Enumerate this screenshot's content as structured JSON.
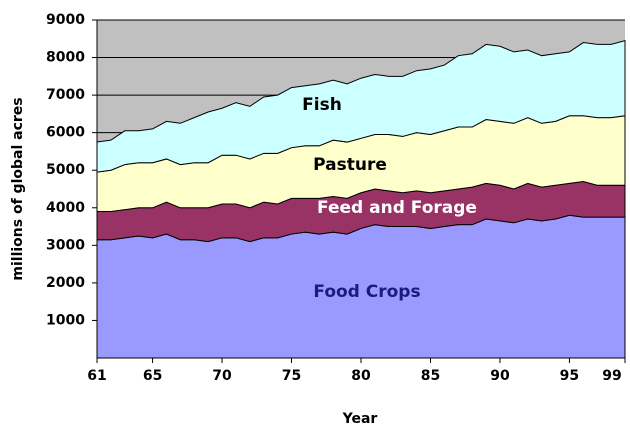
{
  "chart_data": {
    "type": "stacked_area",
    "x_label": "Year",
    "y_label": "millions of global acres",
    "x": [
      61,
      62,
      63,
      64,
      65,
      66,
      67,
      68,
      69,
      70,
      71,
      72,
      73,
      74,
      75,
      76,
      77,
      78,
      79,
      80,
      81,
      82,
      83,
      84,
      85,
      86,
      87,
      88,
      89,
      90,
      91,
      92,
      93,
      94,
      95,
      96,
      97,
      98,
      99
    ],
    "xlim": [
      61,
      99
    ],
    "xticks": [
      61,
      65,
      70,
      75,
      80,
      85,
      90,
      95,
      99
    ],
    "ylim": [
      0,
      9000
    ],
    "yticks": [
      1000,
      2000,
      3000,
      4000,
      5000,
      6000,
      7000,
      8000,
      9000
    ],
    "grid": true,
    "series": [
      {
        "name": "Food Crops",
        "color": "#9999ff",
        "values": [
          3150,
          3150,
          3200,
          3250,
          3200,
          3300,
          3150,
          3150,
          3100,
          3200,
          3200,
          3100,
          3200,
          3200,
          3300,
          3350,
          3300,
          3350,
          3300,
          3450,
          3550,
          3500,
          3500,
          3500,
          3450,
          3500,
          3550,
          3550,
          3700,
          3650,
          3600,
          3700,
          3650,
          3700,
          3800,
          3750,
          3750,
          3750,
          3750
        ]
      },
      {
        "name": "Feed and Forage",
        "color": "#993366",
        "values": [
          750,
          750,
          750,
          750,
          800,
          850,
          850,
          850,
          900,
          900,
          900,
          900,
          950,
          900,
          950,
          900,
          950,
          950,
          950,
          950,
          950,
          950,
          900,
          950,
          950,
          950,
          950,
          1000,
          950,
          950,
          900,
          950,
          900,
          900,
          850,
          950,
          850,
          850,
          850
        ]
      },
      {
        "name": "Pasture",
        "color": "#ffffcc",
        "values": [
          1050,
          1100,
          1200,
          1200,
          1200,
          1150,
          1150,
          1200,
          1200,
          1300,
          1300,
          1300,
          1300,
          1350,
          1350,
          1400,
          1400,
          1500,
          1500,
          1450,
          1450,
          1500,
          1500,
          1550,
          1550,
          1600,
          1650,
          1600,
          1700,
          1700,
          1750,
          1750,
          1700,
          1700,
          1800,
          1750,
          1800,
          1800,
          1850
        ]
      },
      {
        "name": "Fish",
        "color": "#ccffff",
        "values": [
          800,
          800,
          900,
          850,
          900,
          1000,
          1100,
          1200,
          1350,
          1250,
          1400,
          1400,
          1500,
          1550,
          1600,
          1600,
          1650,
          1600,
          1550,
          1600,
          1600,
          1550,
          1600,
          1650,
          1750,
          1750,
          1900,
          1950,
          2000,
          2000,
          1900,
          1800,
          1800,
          1800,
          1700,
          1950,
          1950,
          1950,
          2000
        ]
      }
    ]
  }
}
